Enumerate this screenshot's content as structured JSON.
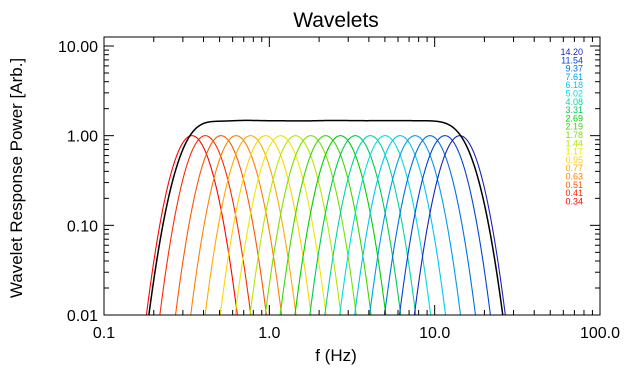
{
  "chart_data": {
    "type": "line",
    "title": "Wavelets",
    "xlabel": "f (Hz)",
    "ylabel": "Wavelet Response Power [Arb.]",
    "xscale": "log",
    "yscale": "log",
    "xlim": [
      0.1,
      100.0
    ],
    "ylim": [
      0.01,
      12.6
    ],
    "grid": false,
    "legend_position": "top-right",
    "xticks": [
      {
        "value": 0.1,
        "label": "0.1"
      },
      {
        "value": 1.0,
        "label": "1.0"
      },
      {
        "value": 10.0,
        "label": "10.0"
      },
      {
        "value": 100.0,
        "label": "100.0"
      }
    ],
    "yticks": [
      {
        "value": 0.01,
        "label": "0.01"
      },
      {
        "value": 0.1,
        "label": "0.10"
      },
      {
        "value": 1.0,
        "label": "1.00"
      },
      {
        "value": 10.0,
        "label": "10.00"
      }
    ],
    "series": [
      {
        "name": "0.34",
        "center_hz": 0.34,
        "peak": 1.0,
        "color": "#ff0000"
      },
      {
        "name": "0.41",
        "center_hz": 0.41,
        "peak": 1.0,
        "color": "#ff2a00"
      },
      {
        "name": "0.51",
        "center_hz": 0.51,
        "peak": 1.0,
        "color": "#ff5500"
      },
      {
        "name": "0.63",
        "center_hz": 0.63,
        "peak": 1.0,
        "color": "#ff8000"
      },
      {
        "name": "0.77",
        "center_hz": 0.77,
        "peak": 1.0,
        "color": "#ffaa00"
      },
      {
        "name": "0.95",
        "center_hz": 0.95,
        "peak": 1.0,
        "color": "#ffd400"
      },
      {
        "name": "1.17",
        "center_hz": 1.17,
        "peak": 1.0,
        "color": "#eaea00"
      },
      {
        "name": "1.44",
        "center_hz": 1.44,
        "peak": 1.0,
        "color": "#b5e800"
      },
      {
        "name": "1.78",
        "center_hz": 1.78,
        "peak": 1.0,
        "color": "#7ae000"
      },
      {
        "name": "2.19",
        "center_hz": 2.19,
        "peak": 1.0,
        "color": "#3cd800"
      },
      {
        "name": "2.69",
        "center_hz": 2.69,
        "peak": 1.0,
        "color": "#00d000"
      },
      {
        "name": "3.31",
        "center_hz": 3.31,
        "peak": 1.0,
        "color": "#00cc55"
      },
      {
        "name": "4.08",
        "center_hz": 4.08,
        "peak": 1.0,
        "color": "#00d6a0"
      },
      {
        "name": "5.02",
        "center_hz": 5.02,
        "peak": 1.0,
        "color": "#00e0d8"
      },
      {
        "name": "6.18",
        "center_hz": 6.18,
        "peak": 1.0,
        "color": "#00c8f0"
      },
      {
        "name": "7.61",
        "center_hz": 7.61,
        "peak": 1.0,
        "color": "#009cf0"
      },
      {
        "name": "9.37",
        "center_hz": 9.37,
        "peak": 1.0,
        "color": "#0070e8"
      },
      {
        "name": "11.54",
        "center_hz": 11.54,
        "peak": 1.0,
        "color": "#0044d8"
      },
      {
        "name": "14.20",
        "center_hz": 14.2,
        "peak": 1.0,
        "color": "#1a20c0"
      }
    ],
    "total_response": {
      "color": "#000000",
      "plateau_peak": 1.48
    },
    "axis_color": "#000000",
    "background": "#ffffff"
  }
}
